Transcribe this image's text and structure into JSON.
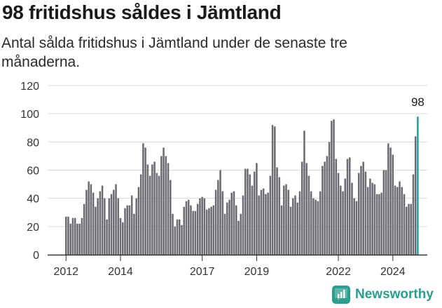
{
  "title": "98 fritidshus såldes i Jämtland",
  "subtitle": "Antal sålda fritidshus i Jämtland under de senaste tre månaderna.",
  "brand": {
    "name": "Newsworthy",
    "color": "#2a9d8f"
  },
  "chart_data": {
    "type": "bar",
    "colors": {
      "bars": "#6b6a70",
      "highlight": "#1a9e9a",
      "grid": "#d9d9d9"
    },
    "ylim": [
      0,
      120
    ],
    "yticks": [
      0,
      20,
      40,
      60,
      80,
      100,
      120
    ],
    "xticks": [
      {
        "label": "2012",
        "index": 0
      },
      {
        "label": "2014",
        "index": 24
      },
      {
        "label": "2017",
        "index": 60
      },
      {
        "label": "2019",
        "index": 84
      },
      {
        "label": "2022",
        "index": 120
      },
      {
        "label": "2024",
        "index": 144
      }
    ],
    "last_value_label": "98",
    "values": [
      27,
      27,
      22,
      26,
      26,
      22,
      22,
      26,
      36,
      46,
      52,
      50,
      44,
      34,
      40,
      45,
      49,
      40,
      25,
      40,
      43,
      46,
      50,
      40,
      26,
      23,
      33,
      35,
      35,
      42,
      29,
      40,
      48,
      57,
      79,
      76,
      64,
      56,
      64,
      66,
      58,
      56,
      70,
      76,
      70,
      65,
      53,
      29,
      20,
      25,
      25,
      21,
      34,
      38,
      39,
      35,
      31,
      31,
      36,
      40,
      41,
      40,
      32,
      33,
      34,
      35,
      46,
      53,
      60,
      45,
      29,
      37,
      39,
      44,
      45,
      35,
      24,
      29,
      42,
      61,
      61,
      57,
      49,
      59,
      65,
      42,
      46,
      47,
      43,
      44,
      56,
      92,
      91,
      62,
      55,
      35,
      49,
      50,
      46,
      34,
      40,
      42,
      37,
      45,
      66,
      88,
      65,
      56,
      45,
      40,
      39,
      38,
      45,
      63,
      66,
      70,
      80,
      95,
      96,
      68,
      58,
      49,
      45,
      54,
      68,
      69,
      51,
      40,
      38,
      58,
      63,
      66,
      59,
      48,
      54,
      51,
      50,
      43,
      43,
      44,
      60,
      60,
      79,
      76,
      71,
      49,
      48,
      52,
      48,
      43,
      34,
      36,
      36,
      57,
      84,
      98
    ]
  }
}
